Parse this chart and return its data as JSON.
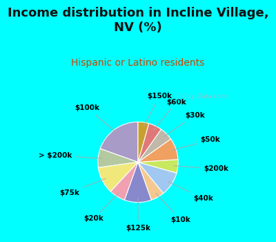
{
  "title": "Income distribution in Incline Village,\nNV (%)",
  "subtitle": "Hispanic or Latino residents",
  "background_color": "#00FFFF",
  "chart_bg_color": "#e8f5ee",
  "watermark": "ⓘ City-Data.com",
  "labels": [
    "$100k",
    "> $200k",
    "$75k",
    "$20k",
    "$125k",
    "$10k",
    "$40k",
    "$200k",
    "$50k",
    "$30k",
    "$60k",
    "$150k"
  ],
  "values": [
    18,
    7,
    10,
    6,
    10,
    5,
    9,
    5,
    8,
    5,
    5,
    4
  ],
  "colors": [
    "#a89bc8",
    "#b5c9a0",
    "#f0e87a",
    "#f0a0b0",
    "#8888cc",
    "#f5c890",
    "#a0c8f0",
    "#c8e860",
    "#f0a060",
    "#c0b8a8",
    "#e07878",
    "#c8a030"
  ],
  "startangle": 90,
  "title_fontsize": 13,
  "subtitle_fontsize": 10,
  "label_fontsize": 7.5
}
